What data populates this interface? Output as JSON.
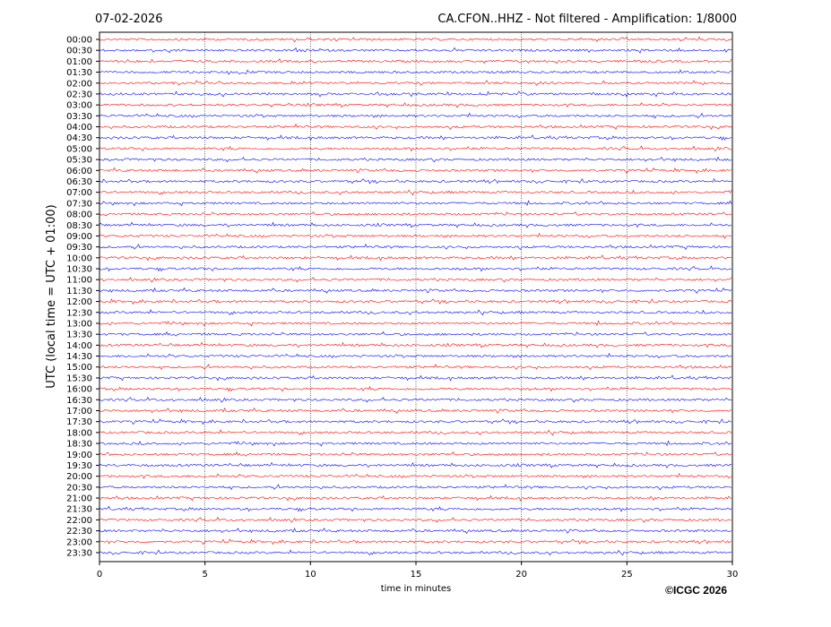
{
  "chart_data": {
    "type": "seismogram",
    "title": "CA.CFON..HHZ - Not filtered - Amplification: 1/8000",
    "date": "07-02-2026",
    "x_label": "time in minutes",
    "y_label": "UTC (local time = UTC + 01:00)",
    "credit": "©ICGC 2026",
    "categories": [
      "00:00",
      "00:30",
      "01:00",
      "01:30",
      "02:00",
      "02:30",
      "03:00",
      "03:30",
      "04:00",
      "04:30",
      "05:00",
      "05:30",
      "06:00",
      "06:30",
      "07:00",
      "07:30",
      "08:00",
      "08:30",
      "09:00",
      "09:30",
      "10:00",
      "10:30",
      "11:00",
      "11:30",
      "12:00",
      "12:30",
      "13:00",
      "13:30",
      "14:00",
      "14:30",
      "15:00",
      "15:30",
      "16:00",
      "16:30",
      "17:00",
      "17:30",
      "18:00",
      "18:30",
      "19:00",
      "19:30",
      "20:00",
      "20:30",
      "21:00",
      "21:30",
      "22:00",
      "22:30",
      "23:00",
      "23:30"
    ],
    "trace_colors": [
      "#ff0000",
      "#0000ff"
    ],
    "xlim": [
      0,
      30
    ],
    "xticks": [
      0,
      5,
      10,
      15,
      20,
      25,
      30
    ],
    "grid": true
  }
}
